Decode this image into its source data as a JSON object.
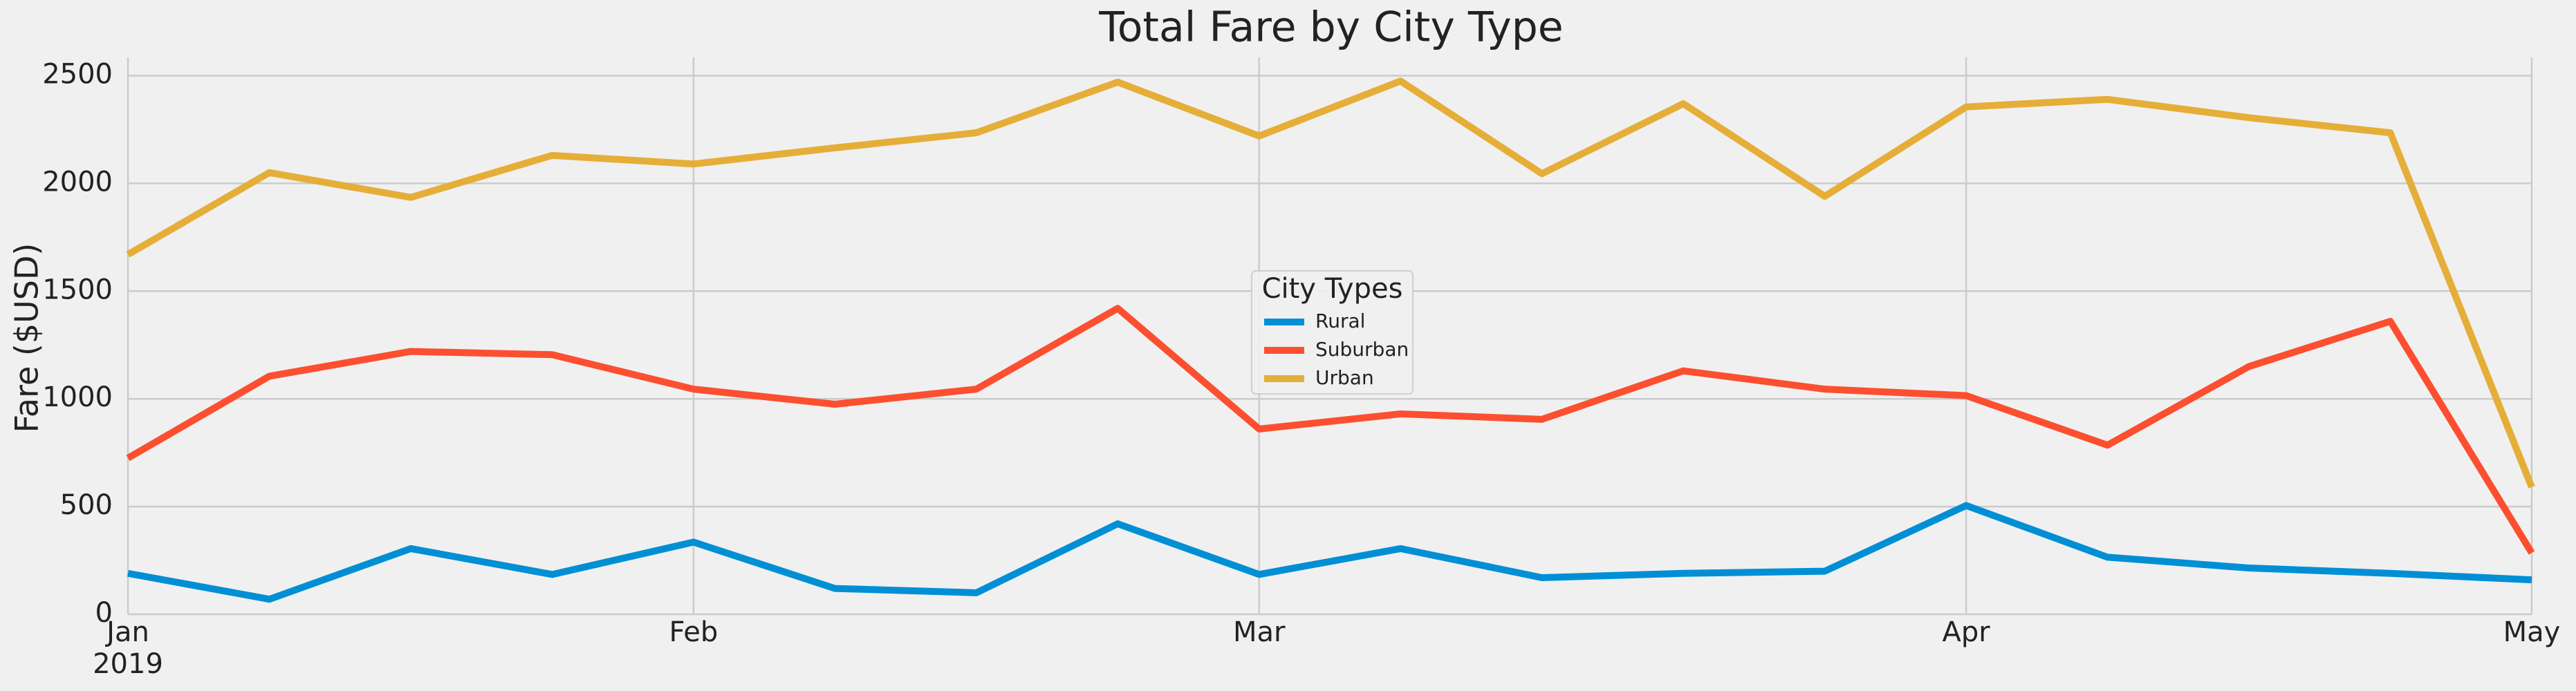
{
  "chart_data": {
    "type": "line",
    "title": "Total Fare by City Type",
    "ylabel": "Fare ($USD)",
    "categories": [
      "Jan",
      null,
      null,
      null,
      "Feb",
      null,
      null,
      null,
      "Mar",
      null,
      null,
      null,
      null,
      "Apr",
      null,
      null,
      null,
      "May"
    ],
    "x_sublabel": "2019",
    "series": [
      {
        "name": "Rural",
        "color": "#008fd5",
        "values": [
          190,
          70,
          305,
          185,
          335,
          120,
          100,
          420,
          185,
          305,
          170,
          190,
          200,
          505,
          265,
          215,
          190,
          160
        ]
      },
      {
        "name": "Suburban",
        "color": "#fc4f30",
        "values": [
          725,
          1105,
          1220,
          1205,
          1045,
          975,
          1045,
          1420,
          860,
          930,
          905,
          1130,
          1045,
          1015,
          785,
          1150,
          1360,
          285
        ]
      },
      {
        "name": "Urban",
        "color": "#e5ae38",
        "values": [
          1670,
          2050,
          1935,
          2130,
          2090,
          2165,
          2235,
          2470,
          2220,
          2475,
          2045,
          2370,
          1940,
          2355,
          2390,
          2305,
          2235,
          590
        ]
      }
    ],
    "legend_title": "City Types",
    "legend": "center",
    "ylim": [
      0,
      2585
    ],
    "yticks": [
      0,
      500,
      1000,
      1500,
      2000,
      2500
    ],
    "grid": true
  }
}
